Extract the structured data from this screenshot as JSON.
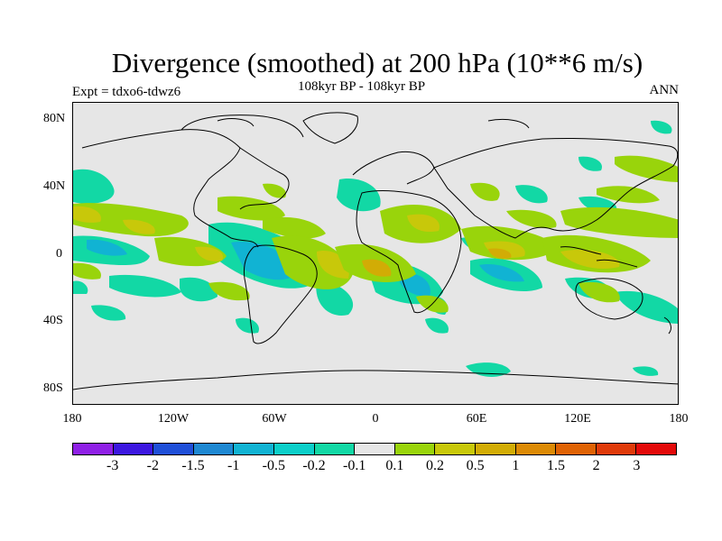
{
  "title": "Divergence (smoothed) at 200 hPa (10**6 m/s)",
  "subtitle": "108kyr BP - 108kyr BP",
  "left_label": "Expt = tdxo6-tdwz6",
  "right_label": "ANN",
  "map": {
    "lat_ticks": [
      "80N",
      "40N",
      "0",
      "40S",
      "80S"
    ],
    "lon_ticks": [
      "180",
      "120W",
      "60W",
      "0",
      "60E",
      "120E",
      "180"
    ],
    "background_color": "#e6e6e6"
  },
  "colorbar": {
    "colors": [
      "#8f20e6",
      "#3c17e0",
      "#1f4fd8",
      "#1e88d2",
      "#11b3d3",
      "#0ccfc9",
      "#12d8a5",
      "#e6e6e6",
      "#99d40b",
      "#c8c80a",
      "#d2ac05",
      "#dc8a05",
      "#df6204",
      "#df3a0a",
      "#e30a0a"
    ],
    "labels": [
      "-3",
      "-2",
      "-1.5",
      "-1",
      "-0.5",
      "-0.2",
      "-0.1",
      "0.1",
      "0.2",
      "0.5",
      "1",
      "1.5",
      "2",
      "3"
    ]
  }
}
